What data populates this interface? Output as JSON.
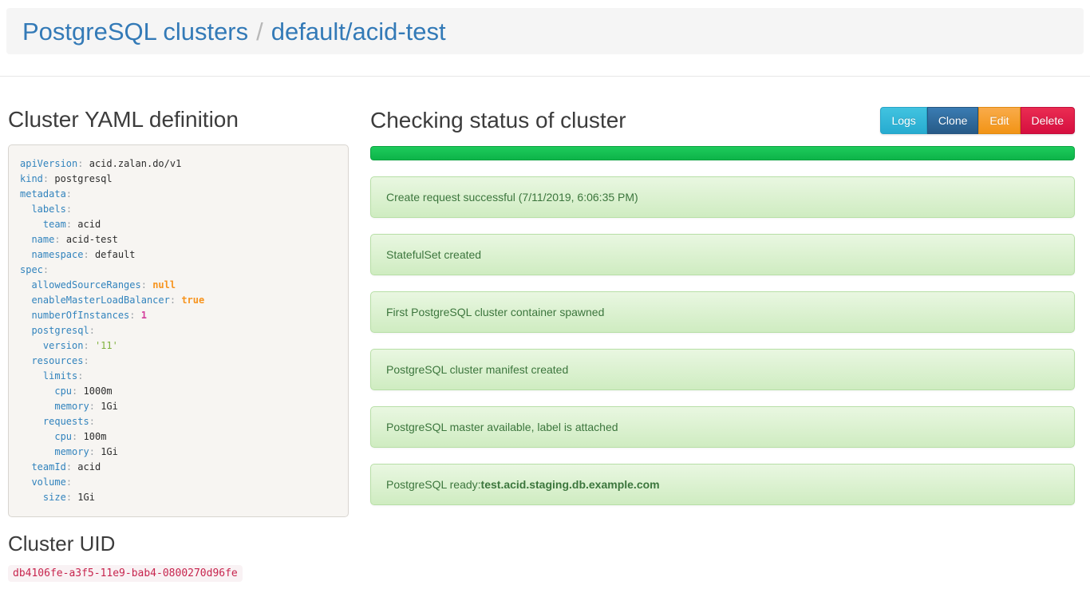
{
  "header": {
    "breadcrumb_root": "PostgreSQL clusters",
    "breadcrumb_separator": "/",
    "breadcrumb_current": "default/acid-test"
  },
  "yaml_section": {
    "title": "Cluster YAML definition",
    "lines": [
      {
        "indent": 0,
        "key": "apiVersion",
        "value": "acid.zalan.do/v1",
        "vtype": "plain"
      },
      {
        "indent": 0,
        "key": "kind",
        "value": "postgresql",
        "vtype": "plain"
      },
      {
        "indent": 0,
        "key": "metadata"
      },
      {
        "indent": 1,
        "key": "labels"
      },
      {
        "indent": 2,
        "key": "team",
        "value": "acid",
        "vtype": "plain"
      },
      {
        "indent": 1,
        "key": "name",
        "value": "acid-test",
        "vtype": "plain"
      },
      {
        "indent": 1,
        "key": "namespace",
        "value": "default",
        "vtype": "plain"
      },
      {
        "indent": 0,
        "key": "spec"
      },
      {
        "indent": 1,
        "key": "allowedSourceRanges",
        "value": "null",
        "vtype": "null"
      },
      {
        "indent": 1,
        "key": "enableMasterLoadBalancer",
        "value": "true",
        "vtype": "bool"
      },
      {
        "indent": 1,
        "key": "numberOfInstances",
        "value": "1",
        "vtype": "num"
      },
      {
        "indent": 1,
        "key": "postgresql"
      },
      {
        "indent": 2,
        "key": "version",
        "value": "'11'",
        "vtype": "str"
      },
      {
        "indent": 1,
        "key": "resources"
      },
      {
        "indent": 2,
        "key": "limits"
      },
      {
        "indent": 3,
        "key": "cpu",
        "value": "1000m",
        "vtype": "plain"
      },
      {
        "indent": 3,
        "key": "memory",
        "value": "1Gi",
        "vtype": "plain"
      },
      {
        "indent": 2,
        "key": "requests"
      },
      {
        "indent": 3,
        "key": "cpu",
        "value": "100m",
        "vtype": "plain"
      },
      {
        "indent": 3,
        "key": "memory",
        "value": "1Gi",
        "vtype": "plain"
      },
      {
        "indent": 1,
        "key": "teamId",
        "value": "acid",
        "vtype": "plain"
      },
      {
        "indent": 1,
        "key": "volume"
      },
      {
        "indent": 2,
        "key": "size",
        "value": "1Gi",
        "vtype": "plain"
      }
    ]
  },
  "uid_section": {
    "title": "Cluster UID",
    "uid": "db4106fe-a3f5-11e9-bab4-0800270d96fe"
  },
  "status_section": {
    "title": "Checking status of cluster",
    "progress_percent": 100,
    "buttons": [
      {
        "label": "Logs",
        "top": "#41c3e0",
        "bottom": "#27abd0",
        "border": "#27a4c7"
      },
      {
        "label": "Clone",
        "top": "#3a7cb3",
        "bottom": "#275a87",
        "border": "#255580"
      },
      {
        "label": "Edit",
        "top": "#f9ab4a",
        "bottom": "#f29416",
        "border": "#e08a10"
      },
      {
        "label": "Delete",
        "top": "#ea2c52",
        "bottom": "#d60f3f",
        "border": "#c30d3a"
      }
    ],
    "messages": [
      {
        "text": "Create request successful (7/11/2019, 6:06:35 PM)"
      },
      {
        "text": "StatefulSet created"
      },
      {
        "text": "First PostgreSQL cluster container spawned"
      },
      {
        "text": "PostgreSQL cluster manifest created"
      },
      {
        "text": "PostgreSQL master available, label is attached"
      },
      {
        "text": "PostgreSQL ready: ",
        "bold": "test.acid.staging.db.example.com"
      }
    ]
  },
  "colors": {
    "link": "#337ab7",
    "success_text": "#3c763d",
    "success_bg_top": "#e9f7e1",
    "success_bg_bottom": "#cfecc1",
    "success_border": "#b7dfa6",
    "progress_green_top": "#1ecb5c",
    "progress_green_bottom": "#0db449",
    "uid_text": "#c7254e",
    "uid_bg": "#f9f2f4",
    "yaml_key": "#3183bd",
    "yaml_literal_orange": "#f7941e",
    "yaml_number_magenta": "#d4409d",
    "yaml_string_green": "#7fb13d"
  }
}
